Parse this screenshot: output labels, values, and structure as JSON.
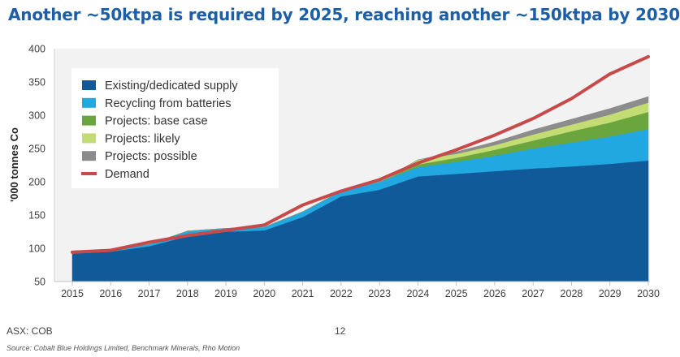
{
  "title": "Another ~50ktpa is required by 2025, reaching another ~150ktpa by 2030",
  "footer": {
    "ticker": "ASX: COB",
    "page_number": "12",
    "source": "Source: Cobalt Blue Holdings Limited, Benchmark Minerals, Rho Motion"
  },
  "chart_data": {
    "type": "area",
    "x": [
      2015,
      2016,
      2017,
      2018,
      2019,
      2020,
      2021,
      2022,
      2023,
      2024,
      2025,
      2026,
      2027,
      2028,
      2029,
      2030
    ],
    "ylabel": "'000 tonnes Co",
    "xlabel": "",
    "ylim": [
      50,
      400
    ],
    "yticks": [
      50,
      100,
      150,
      200,
      250,
      300,
      350,
      400
    ],
    "grid": false,
    "legend_position": "top-left",
    "stacked_series": [
      {
        "name": "Existing/dedicated supply",
        "color": "#105a9a",
        "values": [
          92,
          95,
          103,
          118,
          125,
          127,
          147,
          178,
          188,
          208,
          212,
          216,
          220,
          223,
          227,
          232
        ]
      },
      {
        "name": "Recycling from batteries",
        "color": "#22a8e1",
        "values": [
          4,
          3,
          3,
          8,
          5,
          5,
          8,
          8,
          12,
          14,
          18,
          23,
          30,
          36,
          41,
          47
        ]
      },
      {
        "name": "Projects: base case",
        "color": "#6aa53e",
        "values": [
          0,
          0,
          0,
          0,
          0,
          0,
          0,
          0,
          0,
          4,
          6,
          9,
          12,
          17,
          21,
          26
        ]
      },
      {
        "name": "Projects: likely",
        "color": "#c3dc73",
        "values": [
          0,
          0,
          0,
          0,
          0,
          0,
          0,
          0,
          0,
          7,
          6,
          7,
          9,
          10,
          12,
          14
        ]
      },
      {
        "name": "Projects: possible",
        "color": "#8c8c8c",
        "values": [
          0,
          0,
          0,
          0,
          0,
          0,
          0,
          0,
          0,
          0,
          3,
          5,
          7,
          8,
          9,
          9
        ]
      }
    ],
    "line_series": {
      "name": "Demand",
      "color": "#c74a4a",
      "values": [
        94,
        97,
        109,
        119,
        127,
        135,
        165,
        186,
        203,
        228,
        248,
        270,
        295,
        325,
        362,
        388
      ]
    }
  }
}
